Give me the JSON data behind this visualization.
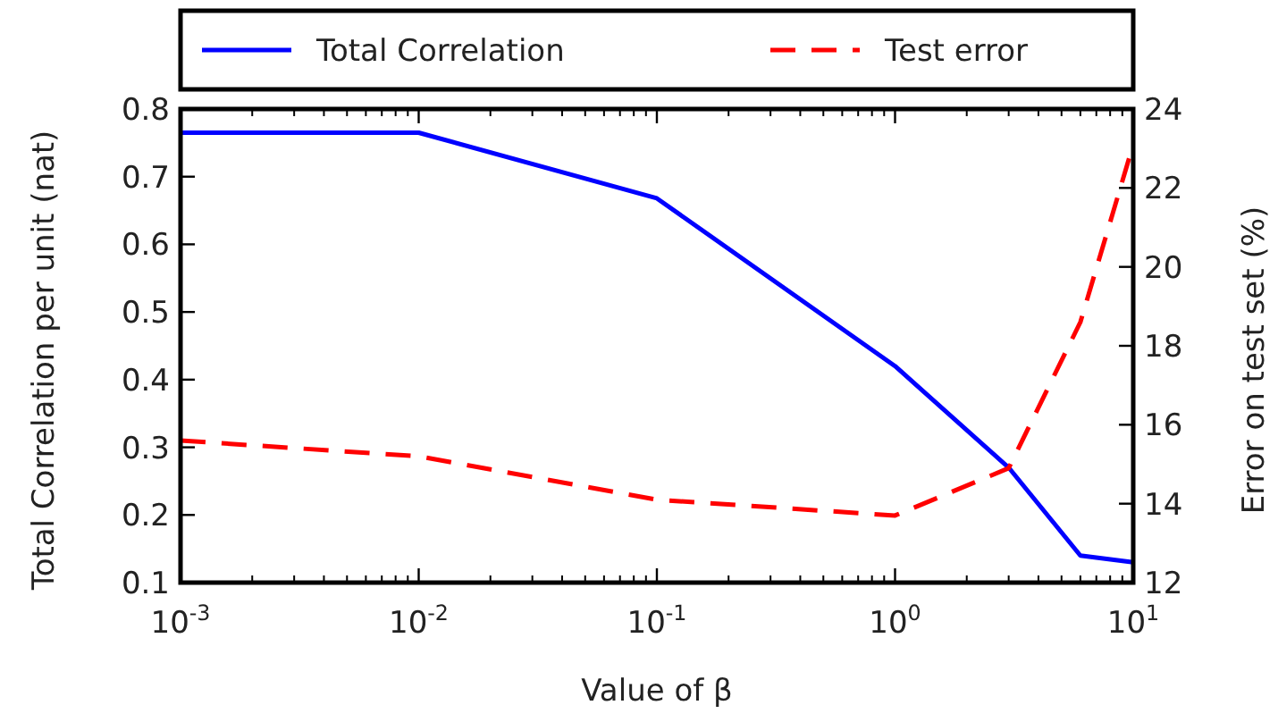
{
  "chart_data": {
    "type": "line",
    "xlabel": "Value of β",
    "ylabel": "Total Correlation per unit (nat)",
    "y2label": "Error on test set (%)",
    "log": "x",
    "legend": "top",
    "grid": false,
    "marker": "none",
    "xlim": [
      0.001,
      10
    ],
    "xticks": [
      {
        "value": 0.001,
        "label": "10$^{-3}$"
      },
      {
        "value": 0.01,
        "label": "10$^{-2}$"
      },
      {
        "value": 0.1,
        "label": "10$^{-1}$"
      },
      {
        "value": 1,
        "label": "10$^{0}$"
      },
      {
        "value": 10,
        "label": "10$^{1}$"
      }
    ],
    "ylim": [
      0.1,
      0.8
    ],
    "yticks": [
      0.1,
      0.2,
      0.3,
      0.4,
      0.5,
      0.6,
      0.7,
      0.8
    ],
    "y2lim": [
      12,
      24
    ],
    "y2ticks": [
      12,
      14,
      16,
      18,
      20,
      22,
      24
    ],
    "series": [
      {
        "name": "Total Correlation",
        "color": "#0000ff",
        "line_style": "solid",
        "x": [
          0.001,
          0.01,
          0.1,
          1,
          3,
          6,
          10
        ],
        "values": [
          0.765,
          0.765,
          0.668,
          0.42,
          0.27,
          0.14,
          0.13
        ]
      },
      {
        "name": "Test error",
        "color": "#ff0000",
        "line_style": "dashed",
        "axis": "y2",
        "x": [
          0.001,
          0.01,
          0.1,
          1,
          3,
          6,
          10
        ],
        "values": [
          15.6,
          15.2,
          14.1,
          13.7,
          14.9,
          18.6,
          23.1
        ]
      }
    ]
  }
}
